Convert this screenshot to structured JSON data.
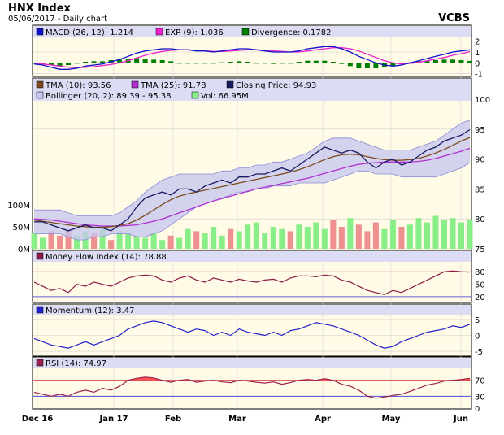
{
  "header": {
    "title": "HNX Index",
    "subtitle": "05/06/2017 - Daily chart",
    "source": "VCBS"
  },
  "colors": {
    "panel_bg": "#fffbe6",
    "band_fill": "#c6c6f0",
    "band_line": "#8a8ad8",
    "tma10": "#7a4a1c",
    "tma25": "#b030d0",
    "price": "#1a1a60",
    "macd": "#1111cc",
    "exp": "#ee22cc",
    "div": "#008000",
    "vol_up": "#88ee88",
    "vol_down": "#ee9090",
    "mfi_line": "#8b1a4a",
    "momentum": "#2222cc",
    "rsi_line": "#9a2050",
    "rsi_fill": "#ff5555",
    "level_red": "#cc3333",
    "level_blue": "#3333cc"
  },
  "legends": {
    "macd": "MACD (26, 12): 1.214",
    "exp": "EXP (9): 1.036",
    "div": "Divergence: 0.1782",
    "tma10": "TMA (10): 93.56",
    "tma25": "TMA (25): 91.78",
    "close": "Closing Price: 94.93",
    "boll": "Bollinger (20, 2): 89.39 - 95.38",
    "vol": "Vol: 66.95M",
    "mfi": "Money Flow Index (14): 78.88",
    "mom": "Momentum (12): 3.47",
    "rsi": "RSI (14): 74.97"
  },
  "x_labels": [
    "Dec 16",
    "Jan 17",
    "Feb",
    "Mar",
    "Apr",
    "May",
    "Jun"
  ],
  "chart_data": [
    {
      "type": "line",
      "name": "macd-panel",
      "y_ticks": [
        "2",
        "1",
        "0",
        "-1"
      ],
      "ylim": [
        -1.1,
        2.2
      ],
      "series": [
        {
          "name": "MACD (26, 12)",
          "values": [
            -0.1,
            -0.2,
            -0.4,
            -0.6,
            -0.6,
            -0.5,
            -0.3,
            -0.2,
            -0.1,
            0.1,
            0.3,
            0.6,
            0.9,
            1.1,
            1.2,
            1.3,
            1.3,
            1.2,
            1.2,
            1.1,
            1.1,
            1.0,
            1.1,
            1.2,
            1.3,
            1.3,
            1.2,
            1.1,
            1.0,
            1.0,
            1.0,
            1.1,
            1.3,
            1.4,
            1.5,
            1.5,
            1.3,
            1.0,
            0.6,
            0.3,
            0.0,
            -0.2,
            -0.3,
            -0.2,
            0.0,
            0.2,
            0.4,
            0.6,
            0.8,
            1.0,
            1.1,
            1.2
          ]
        },
        {
          "name": "EXP (9)",
          "values": [
            -0.05,
            -0.1,
            -0.2,
            -0.3,
            -0.4,
            -0.45,
            -0.4,
            -0.35,
            -0.25,
            -0.15,
            0.0,
            0.2,
            0.45,
            0.7,
            0.9,
            1.05,
            1.15,
            1.2,
            1.2,
            1.15,
            1.1,
            1.05,
            1.05,
            1.1,
            1.15,
            1.2,
            1.2,
            1.15,
            1.1,
            1.05,
            1.0,
            1.0,
            1.1,
            1.2,
            1.3,
            1.4,
            1.4,
            1.3,
            1.1,
            0.8,
            0.5,
            0.2,
            0.0,
            -0.1,
            -0.05,
            0.05,
            0.2,
            0.35,
            0.5,
            0.7,
            0.85,
            1.04
          ]
        },
        {
          "name": "Divergence",
          "values": [
            -0.05,
            -0.1,
            -0.2,
            -0.3,
            -0.2,
            -0.05,
            0.1,
            0.15,
            0.15,
            0.25,
            0.3,
            0.4,
            0.45,
            0.4,
            0.3,
            0.25,
            0.15,
            0.0,
            0.0,
            -0.05,
            0.0,
            -0.05,
            0.05,
            0.1,
            0.15,
            0.1,
            0.0,
            -0.05,
            -0.1,
            -0.05,
            0.0,
            0.1,
            0.2,
            0.2,
            0.2,
            0.1,
            -0.1,
            -0.3,
            -0.5,
            -0.5,
            -0.5,
            -0.4,
            -0.3,
            -0.1,
            0.05,
            0.15,
            0.2,
            0.25,
            0.3,
            0.3,
            0.25,
            0.18
          ]
        }
      ]
    },
    {
      "type": "line",
      "name": "price-panel",
      "y_ticks": [
        "100",
        "95",
        "90",
        "85",
        "80",
        "75"
      ],
      "ylim": [
        75,
        100
      ],
      "vol_ticks": [
        "100M",
        "50M",
        "0M"
      ],
      "vol_lim": [
        0,
        100
      ],
      "series": [
        {
          "name": "Closing Price",
          "values": [
            79.5,
            79.5,
            79,
            78.5,
            78,
            78.5,
            79,
            78.5,
            78.5,
            78,
            79,
            80,
            82,
            83.5,
            84,
            84.5,
            84,
            85,
            85,
            84.5,
            85.5,
            86,
            86.5,
            86,
            87,
            87,
            87.5,
            87.5,
            88,
            88.5,
            88,
            89,
            90,
            91,
            92,
            91.5,
            91,
            91.5,
            91,
            89.5,
            88.5,
            89.5,
            90,
            89,
            89.5,
            90.5,
            91.5,
            92,
            93,
            93.5,
            94,
            94.9
          ]
        },
        {
          "name": "TMA (10)",
          "values": [
            79.8,
            79.6,
            79.4,
            79.2,
            79,
            78.8,
            78.7,
            78.6,
            78.6,
            78.7,
            78.9,
            79.2,
            79.8,
            80.6,
            81.5,
            82.4,
            83.2,
            83.8,
            84.2,
            84.5,
            84.8,
            85.1,
            85.4,
            85.7,
            86,
            86.3,
            86.6,
            86.9,
            87.2,
            87.5,
            87.8,
            88.2,
            88.7,
            89.3,
            89.9,
            90.4,
            90.7,
            90.8,
            90.7,
            90.4,
            90.1,
            89.9,
            89.8,
            89.8,
            89.9,
            90.1,
            90.5,
            91,
            91.6,
            92.3,
            93,
            93.6
          ]
        },
        {
          "name": "TMA (25)",
          "values": [
            80,
            79.9,
            79.8,
            79.6,
            79.4,
            79.2,
            79,
            78.9,
            78.8,
            78.8,
            78.8,
            78.9,
            79,
            79.3,
            79.6,
            80,
            80.5,
            81,
            81.5,
            82,
            82.5,
            83,
            83.4,
            83.8,
            84.2,
            84.6,
            85,
            85.3,
            85.6,
            85.9,
            86.2,
            86.5,
            86.8,
            87.2,
            87.6,
            88,
            88.4,
            88.8,
            89.1,
            89.3,
            89.4,
            89.5,
            89.5,
            89.5,
            89.5,
            89.6,
            89.8,
            90.1,
            90.5,
            90.9,
            91.3,
            91.8
          ]
        },
        {
          "name": "Bollinger upper",
          "values": [
            81.5,
            81.5,
            81.5,
            81.5,
            81,
            80.5,
            80.5,
            80.5,
            80.5,
            80.5,
            81,
            82,
            83,
            84.5,
            85.5,
            86.5,
            87,
            87.5,
            87.5,
            87.5,
            87.5,
            87.5,
            88,
            88,
            88.5,
            88.5,
            89,
            89,
            89.5,
            89.5,
            90,
            90.5,
            91,
            92,
            93,
            93.5,
            93.5,
            93.5,
            93,
            92.5,
            92,
            91.5,
            91.5,
            91.5,
            91.5,
            92,
            92.5,
            93,
            94,
            95,
            96,
            96.5
          ]
        },
        {
          "name": "Bollinger lower",
          "values": [
            77.5,
            77.5,
            77.5,
            77.5,
            77,
            76.5,
            76.5,
            77,
            77,
            77.5,
            77.5,
            77.5,
            77,
            77,
            77.5,
            78,
            79,
            80,
            81,
            82,
            82.5,
            83,
            83.5,
            84,
            84.5,
            84.5,
            85,
            85,
            85.5,
            85.5,
            85.5,
            86,
            86,
            86,
            86,
            86.5,
            87,
            87.5,
            88,
            88,
            87.5,
            87.5,
            87.5,
            87,
            87,
            87,
            87,
            87,
            87.5,
            88,
            88.5,
            89.4
          ]
        },
        {
          "name": "Vol",
          "values": [
            35,
            25,
            40,
            30,
            45,
            30,
            40,
            35,
            45,
            20,
            40,
            35,
            30,
            25,
            35,
            20,
            30,
            25,
            45,
            40,
            35,
            50,
            30,
            45,
            40,
            55,
            60,
            35,
            50,
            45,
            40,
            55,
            50,
            60,
            45,
            65,
            50,
            70,
            55,
            40,
            60,
            45,
            65,
            50,
            55,
            70,
            60,
            75,
            65,
            70,
            60,
            67
          ]
        }
      ]
    },
    {
      "type": "line",
      "name": "mfi-panel",
      "y_ticks": [
        "80",
        "50",
        "20"
      ],
      "ylim": [
        10,
        100
      ],
      "levels": [
        80,
        20
      ],
      "series": [
        {
          "name": "Money Flow Index (14)",
          "values": [
            55,
            45,
            35,
            40,
            30,
            50,
            45,
            55,
            50,
            45,
            55,
            65,
            70,
            72,
            70,
            60,
            55,
            65,
            70,
            60,
            55,
            65,
            60,
            55,
            62,
            58,
            55,
            60,
            62,
            55,
            65,
            70,
            70,
            68,
            72,
            70,
            60,
            55,
            45,
            35,
            30,
            25,
            35,
            30,
            40,
            50,
            60,
            70,
            80,
            82,
            80,
            79
          ]
        }
      ]
    },
    {
      "type": "line",
      "name": "momentum-panel",
      "y_ticks": [
        "5",
        "0",
        "-5"
      ],
      "ylim": [
        -6,
        6
      ],
      "series": [
        {
          "name": "Momentum (12)",
          "values": [
            -1,
            -2,
            -3,
            -3.5,
            -4,
            -3,
            -2,
            -3,
            -2,
            -1,
            0,
            2,
            3,
            4,
            4.5,
            4,
            3,
            2,
            1,
            2,
            1.5,
            0,
            1,
            0,
            2,
            1,
            0.5,
            0,
            1,
            0,
            1.5,
            2,
            3,
            4,
            3.5,
            3,
            2,
            1,
            0,
            -1.5,
            -3,
            -4,
            -3.5,
            -2,
            -1,
            0,
            1,
            1.5,
            2,
            3,
            2.5,
            3.5
          ]
        }
      ]
    },
    {
      "type": "area",
      "name": "rsi-panel",
      "y_ticks": [
        "70",
        "30",
        "0"
      ],
      "ylim": [
        0,
        100
      ],
      "levels": [
        70,
        30
      ],
      "series": [
        {
          "name": "RSI (14)",
          "values": [
            40,
            35,
            30,
            35,
            30,
            40,
            45,
            40,
            50,
            45,
            55,
            70,
            75,
            78,
            76,
            70,
            65,
            70,
            72,
            65,
            68,
            70,
            66,
            64,
            70,
            68,
            65,
            63,
            66,
            60,
            64,
            70,
            72,
            70,
            74,
            70,
            60,
            55,
            45,
            30,
            25,
            28,
            32,
            35,
            42,
            50,
            58,
            62,
            68,
            70,
            72,
            75
          ]
        }
      ]
    }
  ]
}
